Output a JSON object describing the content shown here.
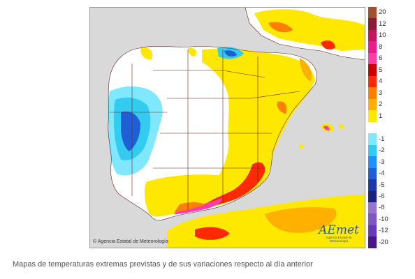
{
  "map": {
    "credit": "© Agencia Estatal de Meteorología",
    "logo": {
      "word": "AEmet",
      "subtitle": "Agencia Estatal de Meteorología"
    },
    "colors": {
      "sea": "#d9d9d9",
      "land_base": "#ffffff",
      "border": "#6b1f1f"
    }
  },
  "legend": {
    "items": [
      {
        "label": "20",
        "color": "#a0522d"
      },
      {
        "label": "12",
        "color": "#8b1a3a"
      },
      {
        "label": "10",
        "color": "#c2185b"
      },
      {
        "label": "8",
        "color": "#e91e8c"
      },
      {
        "label": "6",
        "color": "#ff3da8"
      },
      {
        "label": "5",
        "color": "#cc0000"
      },
      {
        "label": "4",
        "color": "#ff2a00"
      },
      {
        "label": "3",
        "color": "#ff7f00"
      },
      {
        "label": "2",
        "color": "#ffb000"
      },
      {
        "label": "1",
        "color": "#ffe800"
      },
      {
        "label": "",
        "color": "#ffffff"
      },
      {
        "label": "-1",
        "color": "#7fe8ff"
      },
      {
        "label": "-2",
        "color": "#33ccf0"
      },
      {
        "label": "-3",
        "color": "#1e90ff"
      },
      {
        "label": "-4",
        "color": "#1f5fd6"
      },
      {
        "label": "-5",
        "color": "#1a3aa8"
      },
      {
        "label": "-6",
        "color": "#1a237e"
      },
      {
        "label": "-8",
        "color": "#9575cd"
      },
      {
        "label": "-10",
        "color": "#7e57c2"
      },
      {
        "label": "-12",
        "color": "#673ab7"
      },
      {
        "label": "-20",
        "color": "#4a148c"
      }
    ]
  },
  "caption": "Mapas de temperaturas extremas previstas y de sus variaciones respecto al día anterior"
}
